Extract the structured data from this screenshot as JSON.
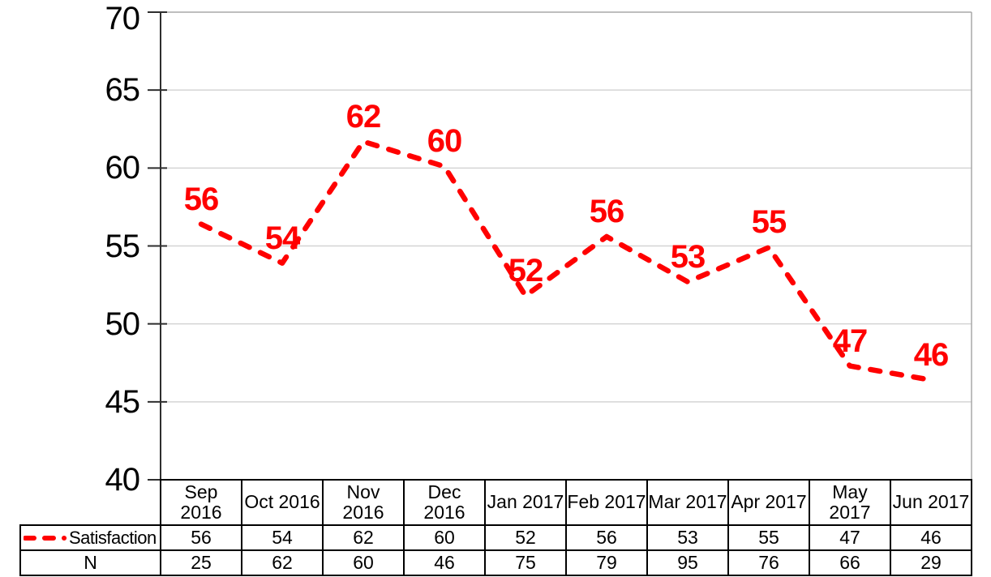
{
  "chart_data": {
    "type": "line",
    "title": "",
    "xlabel": "",
    "ylabel": "",
    "categories": [
      "Sep 2016",
      "Oct 2016",
      "Nov 2016",
      "Dec 2016",
      "Jan 2017",
      "Feb 2017",
      "Mar 2017",
      "Apr 2017",
      "May 2017",
      "Jun 2017"
    ],
    "category_labels_wrapped": [
      "Sep\n2016",
      "Oct 2016",
      "Nov\n2016",
      "Dec\n2016",
      "Jan 2017",
      "Feb 2017",
      "Mar 2017",
      "Apr 2017",
      "May\n2017",
      "Jun 2017"
    ],
    "series": [
      {
        "name": "Satisfaction",
        "type": "line",
        "line_style": "dashed",
        "show_data_labels": true,
        "values": [
          56,
          54,
          62,
          60,
          52,
          56,
          53,
          55,
          47,
          46
        ],
        "plotted_values": [
          56.4,
          53.9,
          61.7,
          60.1,
          51.8,
          55.6,
          52.7,
          54.9,
          47.3,
          46.4
        ]
      },
      {
        "name": "N",
        "type": "table-only",
        "values": [
          25,
          62,
          60,
          46,
          75,
          79,
          95,
          76,
          66,
          29
        ]
      }
    ],
    "ylim": [
      40,
      70
    ],
    "yticks": [
      70,
      65,
      60,
      55,
      50,
      45,
      40
    ],
    "grid": "horizontal",
    "legend_position": "data-table-left",
    "data_table_shown": true,
    "colors": {
      "line": "#FF0000",
      "data_label": "#FF0000",
      "axis": "#2E2E2E",
      "gridline": "#D4D4D4",
      "plot_border": "#A8A8A8",
      "table_border": "#000000",
      "text": "#000000",
      "background": "#FFFFFF"
    }
  }
}
